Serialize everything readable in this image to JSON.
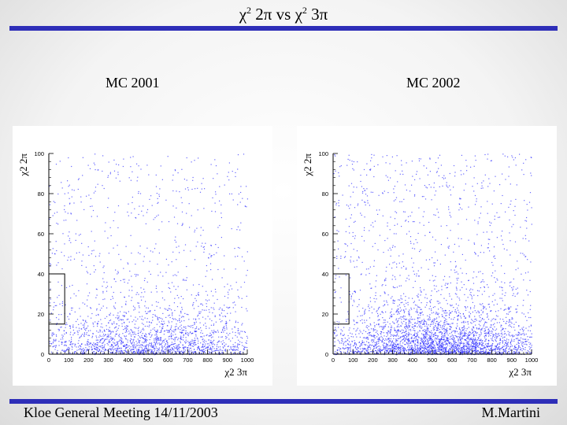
{
  "slide": {
    "title": "χ2 2π vs χ2 3π",
    "title_parts": [
      "χ",
      "2",
      " 2π vs χ",
      "2",
      " 3π"
    ],
    "footer_left": "Kloe General Meeting 14/11/2003",
    "footer_right": "M.Martini",
    "accent_color": "#2e2eb8"
  },
  "chart_data": [
    {
      "type": "scatter",
      "title": "MC 2001",
      "xlabel": "χ2 3π",
      "ylabel": "χ2 2π",
      "xlim": [
        0,
        1000
      ],
      "ylim": [
        0,
        100
      ],
      "xticks": [
        0,
        100,
        200,
        300,
        400,
        500,
        600,
        700,
        800,
        900,
        1000
      ],
      "yticks": [
        0,
        20,
        40,
        60,
        80,
        100
      ],
      "point_color": "#3333ff",
      "box": {
        "x": [
          0,
          80
        ],
        "y": [
          15,
          40
        ]
      },
      "points": [
        {
          "n": 1900,
          "x_mean": 520,
          "x_sd": 330,
          "y_scale": 9
        },
        {
          "n": 650,
          "x_min": 0,
          "x_max": 1000,
          "y_min": 0,
          "y_max": 100
        }
      ]
    },
    {
      "type": "scatter",
      "title": "MC 2002",
      "xlabel": "χ2 3π",
      "ylabel": "χ2 2π",
      "xlim": [
        0,
        1000
      ],
      "ylim": [
        0,
        100
      ],
      "xticks": [
        0,
        100,
        200,
        300,
        400,
        500,
        600,
        700,
        800,
        900,
        1000
      ],
      "yticks": [
        0,
        20,
        40,
        60,
        80,
        100
      ],
      "point_color": "#3333ff",
      "box": {
        "x": [
          0,
          80
        ],
        "y": [
          15,
          40
        ]
      },
      "points": [
        {
          "n": 3000,
          "x_mean": 540,
          "x_sd": 300,
          "y_scale": 9
        },
        {
          "n": 900,
          "x_min": 0,
          "x_max": 1000,
          "y_min": 0,
          "y_max": 100
        }
      ]
    }
  ]
}
